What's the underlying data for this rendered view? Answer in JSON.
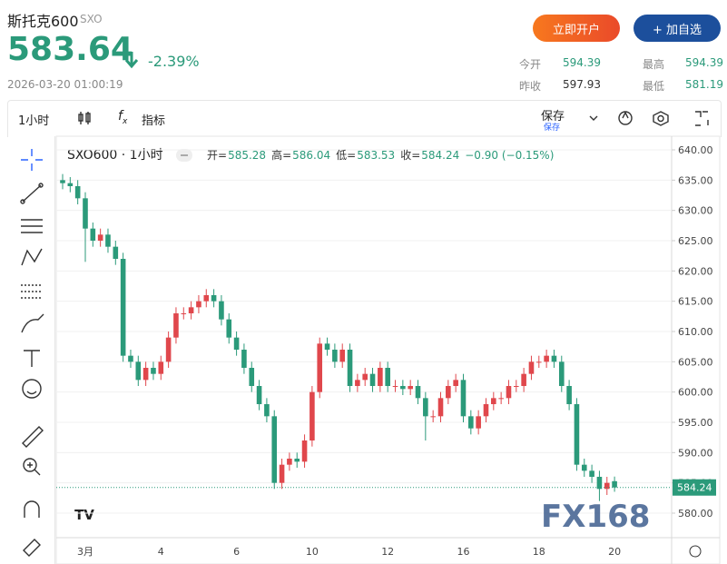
{
  "header": {
    "title": "斯托克600",
    "code": "SXO",
    "price": "583.64",
    "change": "-2.39%",
    "time": "2026-03-20 01:00:19",
    "buttons": [
      "立即开户",
      "+ 加自选"
    ],
    "stats": [
      {
        "label": "今开",
        "value": "594.39"
      },
      {
        "label": "最高",
        "value": "594.39"
      },
      {
        "label": "昨收",
        "value": "597.93"
      },
      {
        "label": "最低",
        "value": "581.19"
      }
    ]
  },
  "toolbar": {
    "interval": "1小时",
    "indicators": "指标",
    "save": "保存",
    "save_sub": "保存"
  },
  "chart_data": {
    "type": "candlestick",
    "title": "SXO600 · 1小时",
    "legend": {
      "labels": [
        "开=",
        "高=",
        "低=",
        "收="
      ],
      "change": "−0.90 (−0.15%)"
    },
    "categories": [
      null,
      null,
      null,
      "3月",
      null,
      null,
      null,
      null,
      null,
      null,
      null,
      null,
      null,
      "4",
      null,
      null,
      null,
      null,
      null,
      null,
      null,
      null,
      null,
      "6",
      null,
      null,
      null,
      null,
      null,
      null,
      null,
      null,
      null,
      "10",
      null,
      null,
      null,
      null,
      null,
      null,
      null,
      null,
      null,
      "12",
      null,
      null,
      null,
      null,
      null,
      null,
      null,
      null,
      null,
      "16",
      null,
      null,
      null,
      null,
      null,
      null,
      null,
      null,
      null,
      "18",
      null,
      null,
      null,
      null,
      null,
      null,
      null,
      null,
      null,
      "20"
    ],
    "open": [
      635,
      634.5,
      634,
      632,
      627,
      625,
      626,
      624,
      622,
      606,
      605,
      602,
      604,
      603,
      605,
      609,
      613,
      613,
      614,
      615,
      616,
      615,
      612,
      609,
      607,
      604,
      601,
      598,
      596,
      585,
      588,
      589,
      588.5,
      592,
      600,
      608,
      607,
      605,
      607,
      601,
      602,
      603,
      601,
      604,
      601,
      601,
      600.5,
      601,
      599,
      596,
      596,
      599,
      601,
      602,
      596,
      594,
      596,
      598,
      599,
      599,
      601,
      601,
      603,
      605,
      605,
      606,
      605,
      601,
      598,
      588,
      587,
      586,
      584,
      585.28
    ],
    "high": [
      636,
      635.5,
      635,
      633,
      628,
      627,
      627,
      625,
      623,
      607,
      606,
      605,
      605,
      606,
      610,
      614,
      614,
      615,
      616,
      617,
      617,
      616,
      613,
      610,
      608,
      605,
      602,
      599,
      597,
      589,
      590,
      590,
      593,
      601,
      609,
      609,
      608,
      608,
      608,
      603,
      604,
      604,
      605,
      605,
      602,
      602,
      602,
      602,
      600,
      597,
      600,
      602,
      603,
      603,
      597,
      597,
      599,
      600,
      600,
      602,
      602,
      604,
      606,
      606,
      607,
      607,
      606,
      602,
      599,
      589,
      588,
      587,
      586,
      586.04
    ],
    "low": [
      633.5,
      633,
      631,
      621.5,
      624,
      624,
      623,
      621,
      605,
      604,
      601,
      601,
      602,
      602,
      604,
      608,
      612,
      612,
      613,
      614,
      614,
      611,
      608,
      606,
      603,
      600,
      597,
      595,
      584,
      584,
      587,
      587.5,
      587.5,
      591,
      599,
      606,
      604,
      604,
      600,
      600,
      601,
      600,
      600,
      600,
      600,
      599.5,
      599.5,
      598,
      592,
      595,
      595,
      598,
      600,
      595,
      593,
      593,
      595,
      597,
      598,
      598,
      600,
      600,
      602,
      604,
      604,
      604,
      600,
      597,
      587,
      586,
      585,
      582,
      583,
      583.53
    ],
    "close": [
      634.5,
      634,
      632,
      627,
      625,
      626,
      624,
      622,
      606,
      605,
      602,
      604,
      603,
      605,
      609,
      613,
      613,
      614,
      615,
      616,
      615,
      612,
      609,
      607,
      604,
      601,
      598,
      596,
      585,
      588,
      589,
      588.5,
      592,
      600,
      608,
      607,
      605,
      607,
      601,
      602,
      603,
      601,
      604,
      601,
      601,
      600.5,
      601,
      599,
      596,
      596,
      599,
      601,
      602,
      596,
      594,
      596,
      598,
      599,
      599,
      601,
      601,
      603,
      605,
      605,
      606,
      605,
      601,
      598,
      588,
      587,
      586,
      584,
      585,
      584.24
    ],
    "up_color": "#e0474c",
    "down_color": "#2b9a7a",
    "ylim": [
      575.95,
      642.25
    ],
    "yticks": [
      {
        "value": 580,
        "label": "580.00"
      },
      {
        "value": 585,
        "label": "585.00"
      },
      {
        "value": 590,
        "label": "590.00"
      },
      {
        "value": 595,
        "label": "595.00"
      },
      {
        "value": 600,
        "label": "600.00"
      },
      {
        "value": 605,
        "label": "605.00"
      },
      {
        "value": 610,
        "label": "610.00"
      },
      {
        "value": 615,
        "label": "615.00"
      },
      {
        "value": 620,
        "label": "620.00"
      },
      {
        "value": 625,
        "label": "625.00"
      },
      {
        "value": 630,
        "label": "630.00"
      },
      {
        "value": 635,
        "label": "635.00"
      },
      {
        "value": 640,
        "label": "640.00"
      }
    ],
    "grid": true,
    "watermark": "FX168"
  }
}
